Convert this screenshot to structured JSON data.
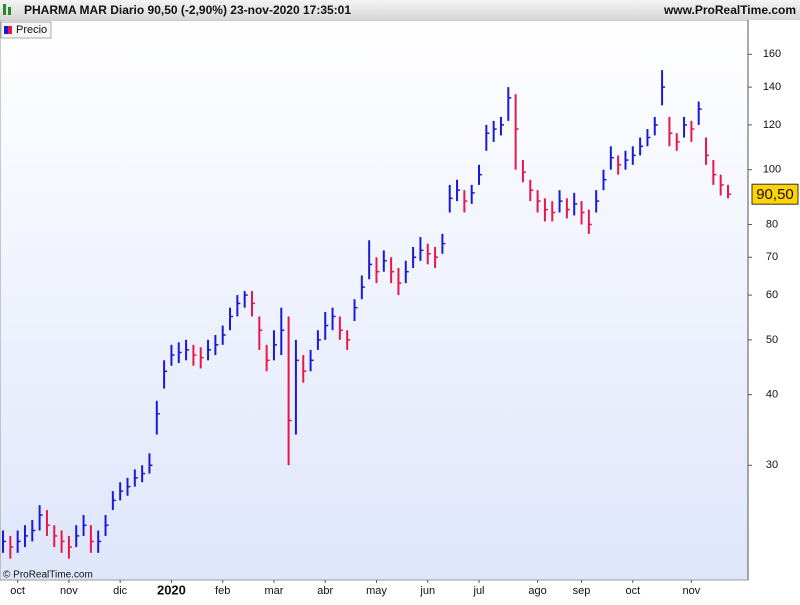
{
  "chart_data": {
    "type": "ohlc",
    "title": "PHARMA MAR Diario 90,50 (-2,90%) 23-nov-2020 17:35:01",
    "site": "www.ProRealTime.com",
    "footer": "© ProRealTime.com",
    "legend": "Precio",
    "up_color": "#1a1ad6",
    "down_color": "#e8174a",
    "log_scale": true,
    "ylim": [
      18.8,
      184
    ],
    "yticks": [
      30,
      40,
      50,
      60,
      70,
      80,
      100,
      120,
      140,
      160
    ],
    "last_price": {
      "value": 90.5,
      "label": "90,50"
    },
    "categories": [
      null,
      null,
      "oct",
      null,
      null,
      null,
      null,
      null,
      null,
      "nov",
      null,
      null,
      null,
      null,
      null,
      null,
      "dic",
      null,
      null,
      null,
      null,
      null,
      null,
      "2020",
      null,
      null,
      null,
      null,
      null,
      null,
      "feb",
      null,
      null,
      null,
      null,
      null,
      null,
      "mar",
      null,
      null,
      null,
      null,
      null,
      null,
      "abr",
      null,
      null,
      null,
      null,
      null,
      null,
      "may",
      null,
      null,
      null,
      null,
      null,
      null,
      "jun",
      null,
      null,
      null,
      null,
      null,
      null,
      "jul",
      null,
      null,
      null,
      null,
      null,
      null,
      null,
      "ago",
      null,
      null,
      null,
      null,
      null,
      "sep",
      null,
      null,
      null,
      null,
      null,
      null,
      "oct",
      null,
      null,
      null,
      null,
      null,
      null,
      null,
      "nov",
      null,
      null,
      null,
      null,
      null
    ],
    "high": [
      23,
      22.5,
      23,
      23.5,
      24,
      25.5,
      25,
      23.5,
      23,
      22.5,
      23.5,
      24.5,
      23.5,
      23,
      24.5,
      27,
      28,
      28.5,
      29.5,
      30,
      31.5,
      39,
      46,
      49,
      49.5,
      50,
      49,
      48.5,
      50,
      51,
      53,
      57,
      60,
      61,
      61,
      55,
      49,
      52,
      57,
      55,
      50,
      47,
      48,
      52,
      56,
      57,
      55,
      52,
      59,
      65,
      75,
      70,
      72,
      70,
      67,
      69,
      73,
      76,
      74,
      73,
      77,
      94,
      96,
      92,
      94,
      102,
      120,
      122,
      124,
      140,
      136,
      104,
      96,
      92,
      89,
      88,
      92,
      89,
      91,
      88,
      85,
      92,
      100,
      110,
      106,
      108,
      110,
      114,
      118,
      124,
      150,
      124,
      116,
      124,
      122,
      132,
      114,
      104,
      98,
      94
    ],
    "low": [
      21,
      20.5,
      21,
      21.5,
      22,
      23,
      22.5,
      21.5,
      21,
      20.5,
      21.5,
      22.5,
      21,
      21,
      22.5,
      25,
      26,
      26.5,
      27.5,
      28,
      29,
      34,
      41,
      45,
      45.5,
      46,
      45,
      44.5,
      46,
      47,
      49,
      52,
      55,
      57,
      55,
      48,
      44,
      46,
      47,
      30,
      34,
      42,
      44,
      48,
      50,
      52,
      50,
      48,
      54,
      59,
      64,
      63,
      66,
      63,
      60,
      63,
      67,
      69,
      68,
      67,
      71,
      84,
      88,
      84,
      87,
      94,
      108,
      112,
      115,
      122,
      100,
      95,
      88,
      84,
      81,
      81,
      84,
      82,
      83,
      80,
      77,
      84,
      92,
      100,
      98,
      100,
      102,
      106,
      110,
      115,
      130,
      110,
      108,
      114,
      112,
      120,
      102,
      94,
      90,
      89
    ],
    "close": [
      22,
      21.5,
      22,
      22.5,
      23,
      24.5,
      23.5,
      22.5,
      22,
      21.5,
      22.5,
      23.5,
      22,
      22,
      23.5,
      26,
      27,
      27.5,
      28.5,
      29,
      30,
      37,
      44,
      47,
      47.5,
      48,
      47,
      46.5,
      48,
      49,
      51,
      55,
      58,
      60,
      58,
      52,
      46,
      49,
      52,
      36,
      46,
      44,
      46,
      50,
      53,
      55,
      52,
      50,
      57,
      62,
      68,
      66,
      69,
      66,
      63,
      66,
      70,
      72,
      71,
      70,
      74,
      89,
      92,
      88,
      91,
      98,
      116,
      118,
      120,
      134,
      118,
      99,
      92,
      88,
      85,
      84,
      88,
      85,
      87,
      84,
      80,
      88,
      96,
      105,
      102,
      104,
      106,
      110,
      114,
      120,
      140,
      116,
      112,
      120,
      118,
      128,
      106,
      98,
      94,
      90.5
    ]
  }
}
